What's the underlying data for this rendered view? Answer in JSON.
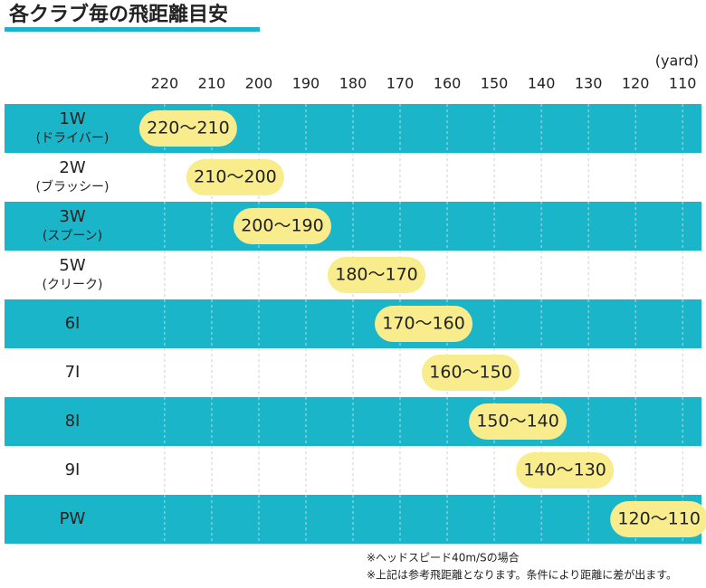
{
  "chart_data": {
    "type": "range",
    "title": "各クラブ毎の飛距離目安",
    "unit": "(yard)",
    "categories": [
      "1W",
      "2W",
      "3W",
      "5W",
      "6I",
      "7I",
      "8I",
      "9I",
      "PW"
    ],
    "category_notes": [
      "(ドライバー)",
      "(ブラッシー)",
      "(スプーン)",
      "(クリーク)",
      null,
      null,
      null,
      null,
      null
    ],
    "values": [
      [
        220,
        210
      ],
      [
        210,
        200
      ],
      [
        200,
        190
      ],
      [
        180,
        170
      ],
      [
        170,
        160
      ],
      [
        160,
        150
      ],
      [
        150,
        140
      ],
      [
        140,
        130
      ],
      [
        120,
        110
      ]
    ],
    "value_labels": [
      "220〜210",
      "210〜200",
      "200〜190",
      "180〜170",
      "170〜160",
      "160〜150",
      "150〜140",
      "140〜130",
      "120〜110"
    ],
    "xlim": [
      254,
      106
    ],
    "xticks": [
      220,
      210,
      200,
      190,
      180,
      170,
      160,
      150,
      140,
      130,
      120,
      110
    ],
    "grid": true,
    "row_color": "#1bb5c9",
    "color": "#f8ec8c",
    "notes": [
      "※ヘッドスピード40m/Sの場合",
      "※上記は参考飛距離となります。条件により距離に差が出ます。"
    ]
  }
}
